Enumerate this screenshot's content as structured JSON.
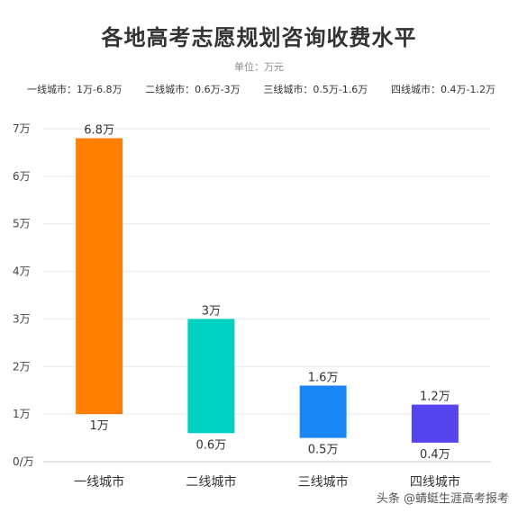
{
  "header": {
    "title": "各地高考志愿规划咨询收费水平",
    "subtitle": "单位：万元",
    "ranges": [
      "一线城市：1万-6.8万",
      "二线城市：0.6万-3万",
      "三线城市：0.5万-1.6万",
      "四线城市：0.4万-1.2万"
    ]
  },
  "watermark": "头条 @蜻蜓生涯高考报考",
  "chart_data": {
    "type": "bar",
    "title": "各地高考志愿规划咨询收费水平",
    "subtitle": "单位：万元",
    "categories": [
      "一线城市",
      "二线城市",
      "三线城市",
      "四线城市"
    ],
    "series": [
      {
        "low": [
          1,
          0.6,
          0.5,
          0.4
        ],
        "high": [
          6.8,
          3,
          1.6,
          1.2
        ]
      }
    ],
    "low_labels": [
      "1万",
      "0.6万",
      "0.5万",
      "0.4万"
    ],
    "high_labels": [
      "6.8万",
      "3万",
      "1.6万",
      "1.2万"
    ],
    "colors": [
      "#ff7f00",
      "#00d0c0",
      "#1a86f5",
      "#5544ee"
    ],
    "ylim": [
      0,
      7
    ],
    "yticks": [
      0,
      1,
      2,
      3,
      4,
      5,
      6,
      7
    ],
    "ytick_labels": [
      "0/万",
      "1万",
      "2万",
      "3万",
      "4万",
      "5万",
      "6万",
      "7万"
    ],
    "grid": true,
    "gridline_color": "#e8e8e8"
  }
}
